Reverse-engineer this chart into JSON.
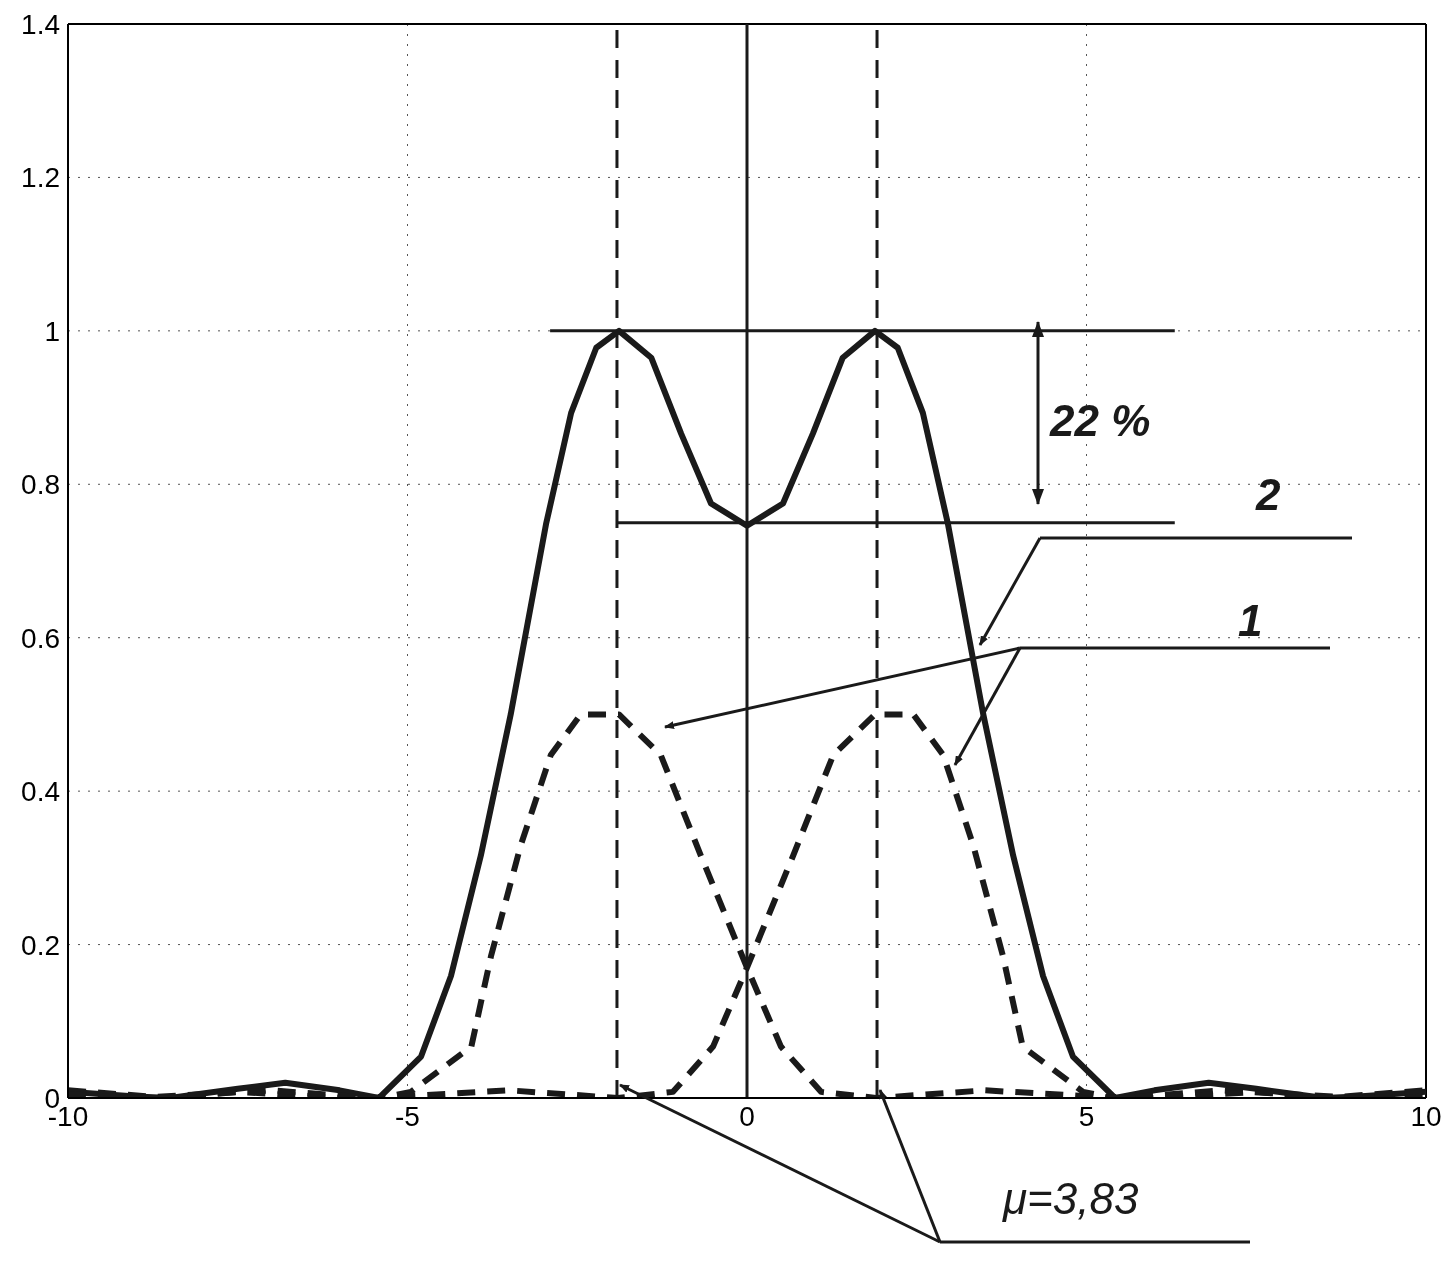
{
  "chart_data": {
    "type": "line",
    "xlim": [
      -10,
      10
    ],
    "xticks": [
      -10,
      -5,
      0,
      5,
      10
    ],
    "ylim": [
      0,
      1.4
    ],
    "yticks": [
      0,
      0.2,
      0.4,
      0.6,
      0.8,
      1,
      1.2,
      1.4
    ],
    "grid": true,
    "legend": false,
    "marker": "none",
    "series": [
      {
        "color": "#1a1a1a",
        "line_style": "solid",
        "x": [
          -10,
          -9,
          -8.5,
          -7.5,
          -6.8,
          -6,
          -5.42,
          -4.8,
          -4.36,
          -3.92,
          -3.48,
          -2.96,
          -2.59,
          -2.22,
          -1.885,
          -1.41,
          -0.97,
          -0.53,
          0,
          0.53,
          0.97,
          1.41,
          1.885,
          2.22,
          2.59,
          2.96,
          3.48,
          3.92,
          4.36,
          4.8,
          5.42,
          6,
          6.8,
          7.5,
          8.5,
          9,
          10
        ],
        "values": [
          0.008,
          0.002,
          0,
          0.012,
          0.02,
          0.01,
          0,
          0.054,
          0.159,
          0.316,
          0.5,
          0.748,
          0.893,
          0.978,
          1,
          0.965,
          0.866,
          0.775,
          0.746,
          0.775,
          0.866,
          0.965,
          1,
          0.978,
          0.893,
          0.748,
          0.5,
          0.316,
          0.159,
          0.054,
          0,
          0.01,
          0.02,
          0.012,
          0,
          0.002,
          0.008
        ]
      },
      {
        "color": "#1a1a1a",
        "line_style": "dashed",
        "x": [
          -10,
          -8.5,
          -7.5,
          -6,
          -5.4,
          -4.95,
          -4.06,
          -3.77,
          -3.33,
          -2.89,
          -2.45,
          -1.885,
          -1.27,
          -0.68,
          0,
          0.5,
          1.09,
          1.9,
          3.5,
          5.5,
          7,
          9,
          10
        ],
        "values": [
          0.01,
          0,
          0.008,
          0,
          0,
          0.008,
          0.067,
          0.185,
          0.33,
          0.447,
          0.5,
          0.5,
          0.447,
          0.316,
          0.17,
          0.067,
          0.008,
          0,
          0.01,
          0,
          0.01,
          0,
          0.005
        ]
      },
      {
        "color": "#1a1a1a",
        "line_style": "dashed",
        "x": [
          -10,
          -9,
          -7,
          -5.5,
          -3.5,
          -1.9,
          -1.09,
          -0.5,
          0,
          0.68,
          1.27,
          1.885,
          2.45,
          2.89,
          3.33,
          3.77,
          4.06,
          4.95,
          5.4,
          6,
          7.5,
          8.5,
          10
        ],
        "values": [
          0.005,
          0,
          0.01,
          0,
          0.01,
          0,
          0.008,
          0.067,
          0.17,
          0.316,
          0.447,
          0.5,
          0.5,
          0.447,
          0.33,
          0.185,
          0.067,
          0.008,
          0,
          0,
          0.008,
          0,
          0.01
        ]
      }
    ],
    "ref_lines": [
      {
        "axis": "x",
        "value": -1.915,
        "line_style": "dashed",
        "color": "#1a1a1a"
      },
      {
        "axis": "x",
        "value": 1.915,
        "line_style": "dashed",
        "color": "#1a1a1a"
      },
      {
        "axis": "x",
        "value": 0,
        "line_style": "solid",
        "color": "#1a1a1a"
      },
      {
        "axis": "y",
        "value": 1,
        "line_style": "solid",
        "color": "#1a1a1a"
      },
      {
        "axis": "y",
        "value": 0.75,
        "line_style": "solid",
        "color": "#1a1a1a"
      }
    ],
    "annotations": [
      "22 %",
      "2",
      "1",
      "μ=3,83"
    ]
  }
}
